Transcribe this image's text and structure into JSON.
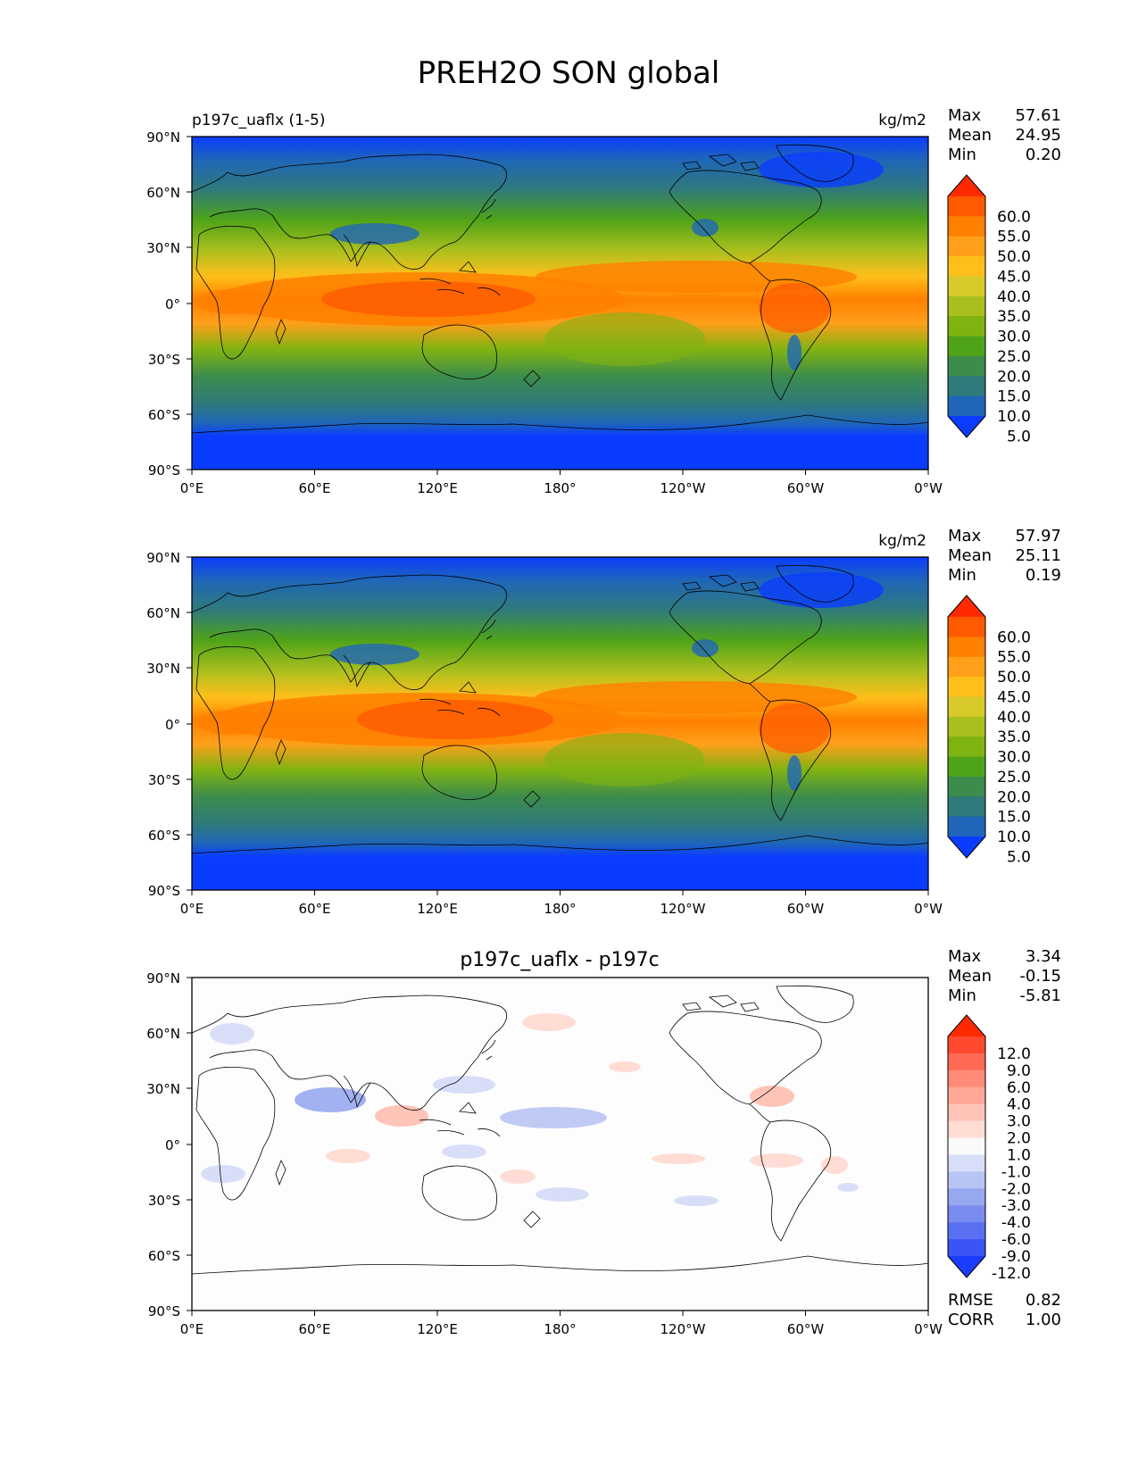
{
  "title": "PREH2O SON global",
  "axes": {
    "lat_ticks": [
      "90°N",
      "60°N",
      "30°N",
      "0°",
      "30°S",
      "60°S",
      "90°S"
    ],
    "lon_ticks": [
      "0°E",
      "60°E",
      "120°E",
      "180°",
      "120°W",
      "60°W",
      "0°W"
    ]
  },
  "panels": [
    {
      "name": "test",
      "left_title": "p197c_uaflx (1-5)",
      "center_title": "",
      "units": "kg/m2",
      "stats": [
        {
          "label": "Max",
          "value": "57.61"
        },
        {
          "label": "Mean",
          "value": "24.95"
        },
        {
          "label": "Min",
          "value": "0.20"
        }
      ],
      "colorbar": {
        "levels": [
          "60.0",
          "55.0",
          "50.0",
          "45.0",
          "40.0",
          "35.0",
          "30.0",
          "25.0",
          "20.0",
          "15.0",
          "10.0",
          "5.0"
        ],
        "colors": [
          "#ff2a00",
          "#ff5a00",
          "#ff8000",
          "#ff9f1a",
          "#ffbf1a",
          "#d8c92a",
          "#a9bf1e",
          "#7fb312",
          "#4fa318",
          "#3c8c4c",
          "#2f7a7a",
          "#1f66b8",
          "#0a3cff"
        ]
      }
    },
    {
      "name": "reference",
      "left_title": "",
      "center_title": "",
      "units": "kg/m2",
      "stats": [
        {
          "label": "Max",
          "value": "57.97"
        },
        {
          "label": "Mean",
          "value": "25.11"
        },
        {
          "label": "Min",
          "value": "0.19"
        }
      ],
      "colorbar": {
        "levels": [
          "60.0",
          "55.0",
          "50.0",
          "45.0",
          "40.0",
          "35.0",
          "30.0",
          "25.0",
          "20.0",
          "15.0",
          "10.0",
          "5.0"
        ],
        "colors": [
          "#ff2a00",
          "#ff5a00",
          "#ff8000",
          "#ff9f1a",
          "#ffbf1a",
          "#d8c92a",
          "#a9bf1e",
          "#7fb312",
          "#4fa318",
          "#3c8c4c",
          "#2f7a7a",
          "#1f66b8",
          "#0a3cff"
        ]
      }
    },
    {
      "name": "difference",
      "left_title": "",
      "center_title": "p197c_uaflx - p197c",
      "units": "",
      "stats": [
        {
          "label": "Max",
          "value": "3.34"
        },
        {
          "label": "Mean",
          "value": "-0.15"
        },
        {
          "label": "Min",
          "value": "-5.81"
        }
      ],
      "colorbar": {
        "levels": [
          "12.0",
          "9.0",
          "6.0",
          "4.0",
          "3.0",
          "2.0",
          "1.0",
          "-1.0",
          "-2.0",
          "-3.0",
          "-4.0",
          "-6.0",
          "-9.0",
          "-12.0"
        ],
        "colors": [
          "#ff2a00",
          "#ff4a30",
          "#ff6a55",
          "#ff8a78",
          "#ffa898",
          "#ffc4b8",
          "#ffdcd4",
          "#fafafa",
          "#d8def8",
          "#b8c4f4",
          "#98a8f0",
          "#7a8cf0",
          "#5a70f2",
          "#3a54f6",
          "#1a3cff"
        ]
      },
      "metrics": [
        {
          "label": "RMSE",
          "value": "0.82"
        },
        {
          "label": "CORR",
          "value": "1.00"
        }
      ]
    }
  ]
}
